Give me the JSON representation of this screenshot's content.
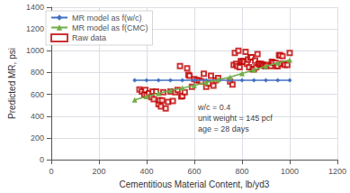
{
  "chart_data": {
    "type": "line",
    "xlabel": "Cementitious Material Content, lb/yd3",
    "ylabel": "Predicted MR, psi",
    "xlim": [
      0,
      1200
    ],
    "ylim": [
      0,
      1400
    ],
    "xticks": [
      0,
      200,
      400,
      600,
      800,
      1000,
      1200
    ],
    "yticks": [
      0,
      200,
      400,
      600,
      800,
      1000,
      1200,
      1400
    ],
    "grid": true,
    "legend": "upper left",
    "series": [
      {
        "name": "MR model as f(w/c)",
        "type": "line",
        "color": "#4472C4",
        "marker": "diamond",
        "x": [
          350,
          400,
          450,
          500,
          550,
          600,
          650,
          700,
          750,
          800,
          850,
          900,
          950,
          1000
        ],
        "values": [
          730,
          730,
          730,
          730,
          730,
          730,
          730,
          730,
          730,
          730,
          730,
          730,
          730,
          730
        ]
      },
      {
        "name": "MR model as f(CMC)",
        "type": "line",
        "color": "#70AD47",
        "marker": "triangle",
        "x": [
          350,
          400,
          450,
          500,
          550,
          600,
          650,
          700,
          750,
          800,
          850,
          900,
          950,
          1000
        ],
        "values": [
          550,
          580,
          610,
          635,
          658,
          682,
          708,
          735,
          758,
          792,
          825,
          858,
          888,
          915
        ]
      },
      {
        "name": "Raw data",
        "type": "scatter",
        "color": "#C00000",
        "marker": "hollow square",
        "x": [
          370,
          380,
          390,
          395,
          400,
          410,
          420,
          425,
          430,
          440,
          450,
          455,
          460,
          465,
          470,
          480,
          490,
          500,
          510,
          520,
          530,
          540,
          545,
          550,
          560,
          570,
          575,
          580,
          590,
          600,
          610,
          620,
          630,
          640,
          650,
          660,
          670,
          680,
          690,
          700,
          750,
          760,
          765,
          770,
          775,
          780,
          785,
          790,
          795,
          800,
          805,
          810,
          815,
          820,
          825,
          830,
          835,
          840,
          845,
          850,
          855,
          860,
          865,
          870,
          875,
          880,
          885,
          890,
          895,
          900,
          910,
          920,
          925,
          930,
          940,
          945,
          950,
          955,
          960,
          965,
          970,
          975,
          980,
          990,
          1000
        ],
        "values": [
          645,
          625,
          600,
          640,
          590,
          610,
          575,
          625,
          555,
          625,
          510,
          545,
          490,
          545,
          620,
          470,
          530,
          625,
          540,
          620,
          640,
          860,
          580,
          585,
          620,
          840,
          780,
          770,
          670,
          740,
          730,
          730,
          720,
          790,
          670,
          700,
          770,
          680,
          730,
          750,
          720,
          690,
          870,
          980,
          880,
          860,
          1000,
          850,
          905,
          900,
          905,
          900,
          990,
          880,
          920,
          850,
          940,
          940,
          830,
          830,
          910,
          850,
          970,
          880,
          875,
          880,
          870,
          870,
          860,
          860,
          870,
          860,
          900,
          890,
          890,
          860,
          860,
          960,
          960,
          880,
          950,
          880,
          870,
          870,
          980
        ]
      }
    ],
    "annotations": [
      {
        "text": "w/c = 0.4\nunit weight = 145 pcf\nage = 28 days",
        "x": 615,
        "y": 230
      }
    ]
  }
}
